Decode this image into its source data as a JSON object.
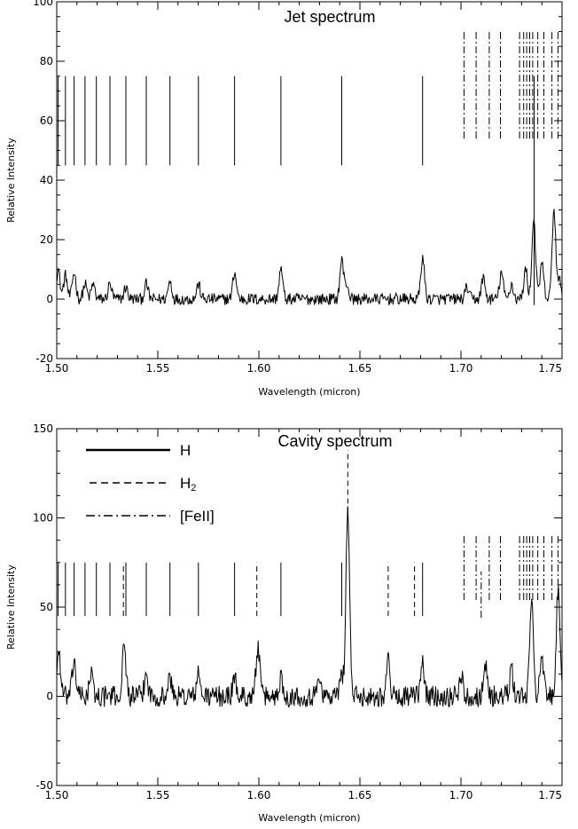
{
  "chart_data": [
    {
      "type": "line",
      "title": "Jet spectrum",
      "xlabel": "Wavelength (micron)",
      "ylabel": "Relative Intensity",
      "xlim": [
        1.5,
        1.75
      ],
      "ylim": [
        -20,
        100
      ],
      "xticks": [
        "1.50",
        "1.55",
        "1.60",
        "1.65",
        "1.70",
        "1.75"
      ],
      "xtick_values": [
        1.5,
        1.55,
        1.6,
        1.65,
        1.7,
        1.75
      ],
      "yticks": [
        "-20",
        "0",
        "20",
        "40",
        "60",
        "80",
        "100"
      ],
      "ytick_values": [
        -20,
        0,
        20,
        40,
        60,
        80,
        100
      ],
      "grid": false,
      "baseline_noise": 2.0,
      "peaks": [
        {
          "x": 1.5007,
          "y": 10
        },
        {
          "x": 1.5043,
          "y": 8
        },
        {
          "x": 1.5086,
          "y": 9
        },
        {
          "x": 1.514,
          "y": 5
        },
        {
          "x": 1.518,
          "y": 5
        },
        {
          "x": 1.5263,
          "y": 5
        },
        {
          "x": 1.5342,
          "y": 4
        },
        {
          "x": 1.5443,
          "y": 5
        },
        {
          "x": 1.556,
          "y": 6
        },
        {
          "x": 1.5701,
          "y": 5
        },
        {
          "x": 1.588,
          "y": 9
        },
        {
          "x": 1.6109,
          "y": 10
        },
        {
          "x": 1.641,
          "y": 13
        },
        {
          "x": 1.6435,
          "y": 5
        },
        {
          "x": 1.681,
          "y": 14
        },
        {
          "x": 1.703,
          "y": 4
        },
        {
          "x": 1.711,
          "y": 7
        },
        {
          "x": 1.72,
          "y": 9
        },
        {
          "x": 1.725,
          "y": 5
        },
        {
          "x": 1.732,
          "y": 10
        },
        {
          "x": 1.736,
          "y": 27
        },
        {
          "x": 1.74,
          "y": 12
        },
        {
          "x": 1.746,
          "y": 30
        },
        {
          "x": 1.749,
          "y": 6
        }
      ],
      "markers": [
        {
          "species": "H",
          "style": "solid",
          "y_range": [
            45,
            75
          ],
          "x": [
            1.5007,
            1.5043,
            1.5086,
            1.514,
            1.5196,
            1.5263,
            1.5342,
            1.5443,
            1.556,
            1.5701,
            1.588,
            1.6109,
            1.641,
            1.681
          ]
        },
        {
          "species": "H",
          "style": "solid",
          "y_range": [
            -2,
            75
          ],
          "x": [
            1.7362
          ]
        },
        {
          "species": "[FeII]",
          "style": "dashdot",
          "y_range": [
            54,
            90
          ],
          "x": [
            1.7015,
            1.7075,
            1.714,
            1.7195,
            1.729,
            1.731,
            1.7325,
            1.734,
            1.7355,
            1.738,
            1.741,
            1.745,
            1.748
          ]
        }
      ]
    },
    {
      "type": "line",
      "title": "Cavity spectrum",
      "xlabel": "Wavelength (micron)",
      "ylabel": "Relative Intensity",
      "xlim": [
        1.5,
        1.75
      ],
      "ylim": [
        -50,
        150
      ],
      "xticks": [
        "1.50",
        "1.55",
        "1.60",
        "1.65",
        "1.70",
        "1.75"
      ],
      "xtick_values": [
        1.5,
        1.55,
        1.6,
        1.65,
        1.7,
        1.75
      ],
      "yticks": [
        "-50",
        "0",
        "50",
        "100",
        "150"
      ],
      "ytick_values": [
        -50,
        0,
        50,
        100,
        150
      ],
      "grid": false,
      "baseline_noise": 6.0,
      "peaks": [
        {
          "x": 1.501,
          "y": 25
        },
        {
          "x": 1.5086,
          "y": 20
        },
        {
          "x": 1.517,
          "y": 12
        },
        {
          "x": 1.5334,
          "y": 28
        },
        {
          "x": 1.5443,
          "y": 12
        },
        {
          "x": 1.556,
          "y": 10
        },
        {
          "x": 1.5701,
          "y": 12
        },
        {
          "x": 1.588,
          "y": 10
        },
        {
          "x": 1.5995,
          "y": 28
        },
        {
          "x": 1.6109,
          "y": 10
        },
        {
          "x": 1.63,
          "y": 12
        },
        {
          "x": 1.641,
          "y": 12
        },
        {
          "x": 1.644,
          "y": 105
        },
        {
          "x": 1.664,
          "y": 20
        },
        {
          "x": 1.681,
          "y": 18
        },
        {
          "x": 1.7,
          "y": 12
        },
        {
          "x": 1.712,
          "y": 18
        },
        {
          "x": 1.725,
          "y": 14
        },
        {
          "x": 1.735,
          "y": 55
        },
        {
          "x": 1.74,
          "y": 20
        },
        {
          "x": 1.748,
          "y": 58
        }
      ],
      "markers": [
        {
          "species": "H",
          "style": "solid",
          "y_range": [
            45,
            75
          ],
          "x": [
            1.5007,
            1.5043,
            1.5086,
            1.514,
            1.5196,
            1.5263,
            1.5342,
            1.5443,
            1.556,
            1.5701,
            1.588,
            1.6109,
            1.641,
            1.681
          ]
        },
        {
          "species": "H2",
          "style": "dashed",
          "y_range": [
            45,
            75
          ],
          "x": [
            1.533,
            1.599,
            1.664,
            1.677
          ]
        },
        {
          "species": "H2",
          "style": "dashed",
          "y_range": [
            103,
            138
          ],
          "x": [
            1.644
          ]
        },
        {
          "species": "[FeII]",
          "style": "dashdot",
          "y_range": [
            54,
            90
          ],
          "x": [
            1.7015,
            1.7075,
            1.714,
            1.7195,
            1.729,
            1.731,
            1.7325,
            1.734,
            1.7355,
            1.738,
            1.741,
            1.745,
            1.748
          ]
        },
        {
          "species": "[FeII]",
          "style": "dashdot",
          "y_range": [
            44,
            70
          ],
          "x": [
            1.71
          ]
        }
      ],
      "legend": {
        "placement": "top-left",
        "entries": [
          {
            "label": "H",
            "style": "solid"
          },
          {
            "label": "H",
            "subscript": "2",
            "style": "dashed"
          },
          {
            "label": "[FeII]",
            "style": "dashdot"
          }
        ]
      }
    }
  ]
}
